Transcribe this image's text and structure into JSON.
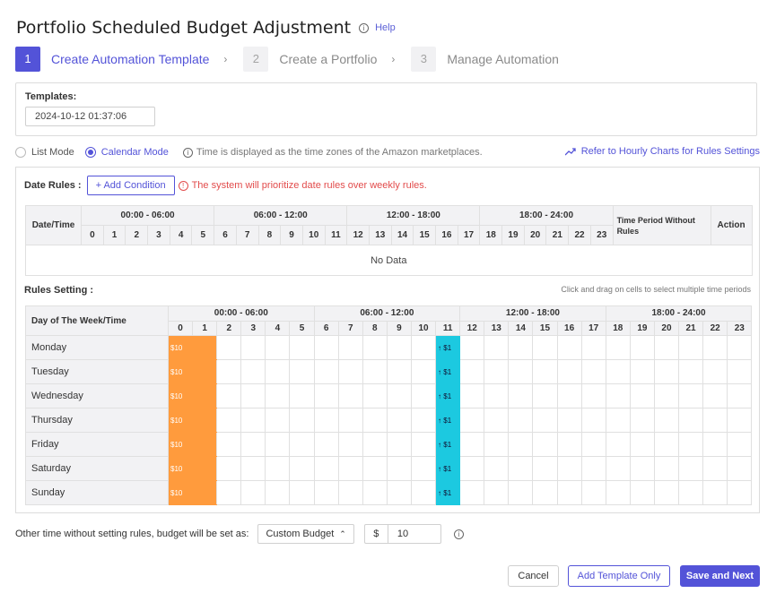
{
  "header": {
    "title": "Portfolio Scheduled Budget Adjustment",
    "help_label": "Help"
  },
  "steps": [
    {
      "num": "1",
      "label": "Create Automation Template",
      "active": true
    },
    {
      "num": "2",
      "label": "Create a Portfolio",
      "active": false
    },
    {
      "num": "3",
      "label": "Manage Automation",
      "active": false
    }
  ],
  "templates": {
    "label": "Templates:",
    "value": "2024-10-12 01:37:06"
  },
  "mode": {
    "list_label": "List Mode",
    "calendar_label": "Calendar Mode",
    "selected": "calendar",
    "timezone_note": "Time is displayed as the time zones of the Amazon marketplaces.",
    "hourly_link": "Refer to Hourly Charts for Rules Settings"
  },
  "date_rules": {
    "label": "Date Rules :",
    "add_condition": "+ Add Condition",
    "warning": "The system will prioritize date rules over weekly rules.",
    "col_datetime": "Date/Time",
    "col_time_period": "Time Period Without Rules",
    "col_action": "Action",
    "no_data": "No Data"
  },
  "time_groups": [
    "00:00 - 06:00",
    "06:00 - 12:00",
    "12:00 - 18:00",
    "18:00 - 24:00"
  ],
  "hours": [
    "0",
    "1",
    "2",
    "3",
    "4",
    "5",
    "6",
    "7",
    "8",
    "9",
    "10",
    "11",
    "12",
    "13",
    "14",
    "15",
    "16",
    "17",
    "18",
    "19",
    "20",
    "21",
    "22",
    "23"
  ],
  "rules_setting": {
    "label": "Rules Setting :",
    "drag_note": "Click and drag on cells to select multiple time periods",
    "col_day": "Day of The Week/Time",
    "days": [
      "Monday",
      "Tuesday",
      "Wednesday",
      "Thursday",
      "Friday",
      "Saturday",
      "Sunday"
    ],
    "orange_label": "$10",
    "cyan_label": "↑ $1",
    "orange_color": "#ff9b3d",
    "cyan_color": "#1cc9e0"
  },
  "bottom": {
    "other_time_label": "Other time without setting rules, budget will be set as:",
    "budget_type": "Custom Budget",
    "currency": "$",
    "amount": "10"
  },
  "buttons": {
    "cancel": "Cancel",
    "add_template_only": "Add Template Only",
    "save_next": "Save and Next"
  },
  "colors": {
    "accent": "#5353d8",
    "warning": "#e24b4b"
  }
}
